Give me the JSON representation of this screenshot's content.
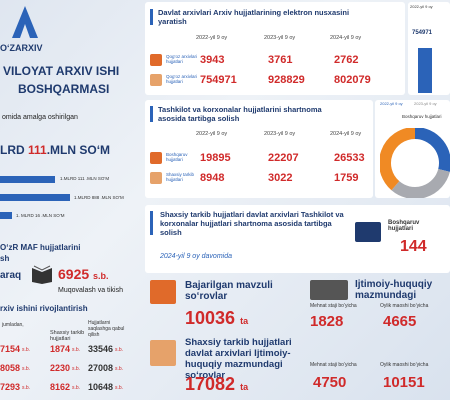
{
  "left": {
    "logo": "O‘ZARXIV",
    "title1": "VILOYAT ARXIV ISHI",
    "title2": "BOSHQARMASI",
    "subtitle": "omida amalga oshirilgan",
    "total": {
      "prefix": "LRD",
      "value": 111,
      "suffix": ".MLN SO‘M"
    },
    "bars": [
      "1.MLRD 111 .MLN SO‘M",
      "1.MLRD 888 .MLN SO‘M",
      "1. MLRD 16 .MLN SO‘M"
    ],
    "maf1": "O‘zR MAF hujjatlarini",
    "maf2": "sh",
    "varaq": "araq",
    "count": 6925,
    "unit": "s.b.",
    "caption": "Muqovalash va tikish",
    "dev": "rxiv ishini rivojlantirish",
    "table": {
      "headers": [
        "jumladan,",
        "Shaxsiy tarkib hujjatlari",
        "Hujjatlarni saqlashga qabul qilish"
      ],
      "rows": [
        [
          7154,
          1874,
          33546
        ],
        [
          8058,
          2230,
          27008
        ],
        [
          7293,
          8162,
          10648
        ]
      ]
    }
  },
  "s1": {
    "title": "Davlat arxivlari Arxiv hujjatlarining elektron nusxasini yaratish",
    "columns": [
      "2022-yil 9 oy",
      "2023-yil 9 oy",
      "2024-yil 9 oy"
    ],
    "rows": [
      {
        "label": "Qog‘oz arxivlari hujjatlari",
        "values": [
          3943,
          3761,
          2762
        ]
      },
      {
        "label": "Qog‘oz arxivlari hujjatlari",
        "values": [
          754971,
          928829,
          802079
        ]
      }
    ],
    "legend": "2022-yil 9 oy"
  },
  "s2": {
    "title": "Tashkilot va korxonalar hujjatlarini shartnoma asosida tartibga solish",
    "columns": [
      "2022-yil 9 oy",
      "2023-yil 9 oy",
      "2024-yil 9 oy"
    ],
    "legend": [
      "2022-yil 9 oy",
      "2023-yil 9 oy"
    ],
    "rows": [
      {
        "label": "Boshqaruv hujjatlari",
        "values": [
          19895,
          22207,
          26533
        ]
      },
      {
        "label": "Shaxsiy tarkib hujjatlari",
        "values": [
          8948,
          3022,
          1759
        ]
      }
    ],
    "donut_label": "Boshqaruv hujjatlari"
  },
  "s3": {
    "title": "Shaxsiy tarkib hujjatlari davlat arxivlari Tashkilot va korxonalar hujjatlari shartnoma asosida tartibga solish",
    "period": "2024-yil 9 oy davomida",
    "label": "Boshqaruv hujjatlari",
    "value": 144
  },
  "s4": {
    "title": "Bajarilgan mavzuli so‘rovlar",
    "value": 10036,
    "unit": "ta",
    "title2": "Ijtimoiy-huquqiy mazmundagi",
    "items": [
      {
        "label": "Mehnat staji bo‘yicha",
        "value": 1828
      },
      {
        "label": "Oylik maoshi bo‘yicha",
        "value": 4665
      }
    ]
  },
  "s5": {
    "title": "Shaxsiy tarkib hujjatlari davlat arxivlari Ijtimoiy-huquqiy mazmundagi so‘rovlar",
    "value": 17082,
    "unit": "ta",
    "items": [
      {
        "label": "Mehnat staji bo‘yicha",
        "value": 4750
      },
      {
        "label": "Oylik maoshi bo‘yicha",
        "value": 10151
      }
    ]
  }
}
